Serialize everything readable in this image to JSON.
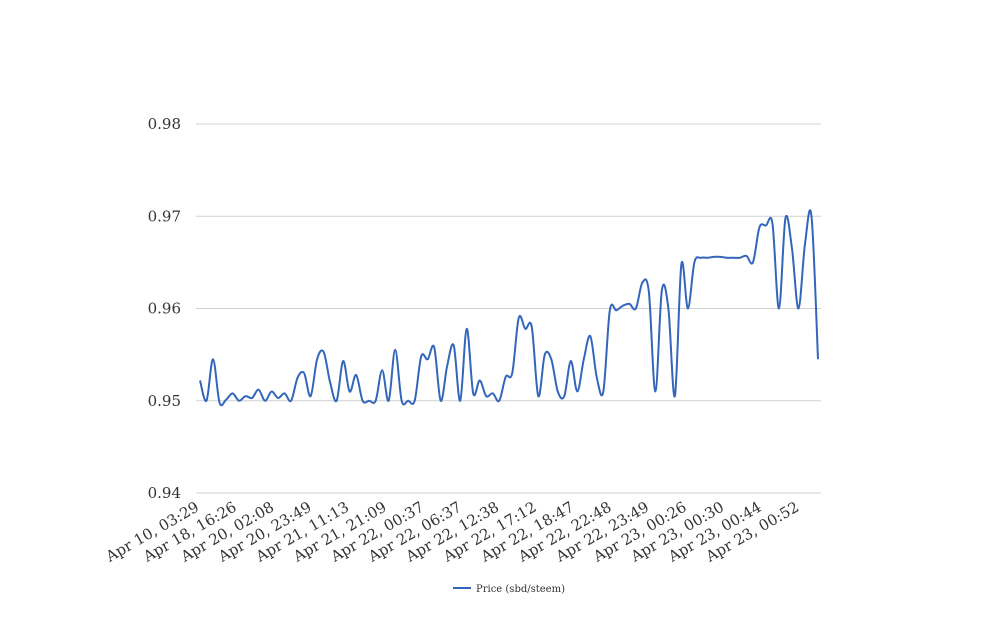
{
  "chart_data": {
    "type": "line",
    "title": "",
    "xlabel": "",
    "ylabel": "",
    "ylim": [
      0.94,
      0.98
    ],
    "y_ticks": [
      "0.94",
      "0.95",
      "0.96",
      "0.97",
      "0.98"
    ],
    "x_tick_labels": [
      "Apr 10, 03:29",
      "Apr 18, 16:26",
      "Apr 20, 02:08",
      "Apr 20, 23:49",
      "Apr 21, 11:13",
      "Apr 21, 21:09",
      "Apr 22, 00:37",
      "Apr 22, 06:37",
      "Apr 22, 12:38",
      "Apr 22, 17:12",
      "Apr 22, 18:47",
      "Apr 22, 22:48",
      "Apr 22, 23:49",
      "Apr 23, 00:26",
      "Apr 23, 00:30",
      "Apr 23, 00:44",
      "Apr 23, 00:52"
    ],
    "grid": "horizontal",
    "legend_position": "bottom",
    "series": [
      {
        "name": "Price (sbd/steem)",
        "color": "#3366bb",
        "values": [
          0.9522,
          0.95,
          0.9545,
          0.9498,
          0.9501,
          0.9508,
          0.95,
          0.9505,
          0.9503,
          0.9512,
          0.95,
          0.951,
          0.9503,
          0.9508,
          0.95,
          0.9525,
          0.953,
          0.9505,
          0.9545,
          0.9553,
          0.952,
          0.95,
          0.9543,
          0.951,
          0.9528,
          0.95,
          0.95,
          0.95,
          0.9533,
          0.95,
          0.9555,
          0.95,
          0.95,
          0.95,
          0.9548,
          0.9545,
          0.9558,
          0.95,
          0.9538,
          0.956,
          0.95,
          0.9578,
          0.9508,
          0.9522,
          0.9505,
          0.9508,
          0.95,
          0.9526,
          0.953,
          0.959,
          0.9578,
          0.958,
          0.9505,
          0.955,
          0.9545,
          0.951,
          0.9505,
          0.9543,
          0.951,
          0.9545,
          0.957,
          0.9525,
          0.951,
          0.9598,
          0.9598,
          0.9603,
          0.9605,
          0.96,
          0.9628,
          0.9618,
          0.951,
          0.962,
          0.96,
          0.9505,
          0.9648,
          0.96,
          0.965,
          0.9655,
          0.9655,
          0.9656,
          0.9656,
          0.9655,
          0.9655,
          0.9655,
          0.9657,
          0.965,
          0.9688,
          0.969,
          0.9692,
          0.96,
          0.9698,
          0.9665,
          0.96,
          0.967,
          0.97,
          0.9545
        ]
      }
    ]
  }
}
